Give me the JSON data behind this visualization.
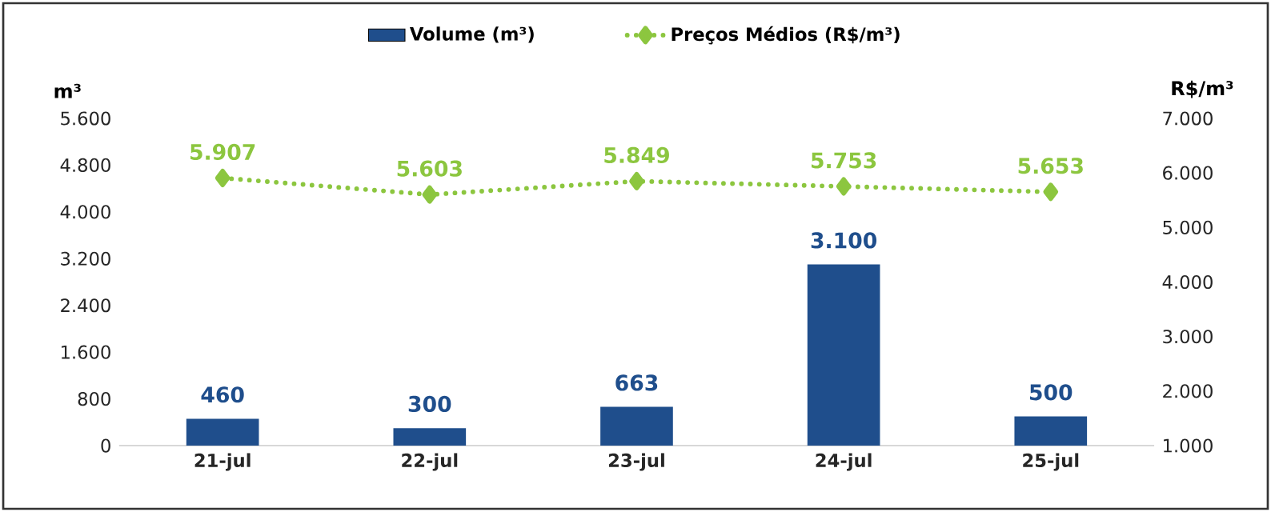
{
  "chart_data": {
    "type": "bar",
    "categories": [
      "21-jul",
      "22-jul",
      "23-jul",
      "24-jul",
      "25-jul"
    ],
    "ylabel": "m³",
    "y2label": "R$/m³",
    "series": [
      {
        "name": "Volume (m³)",
        "color": "#1f4e8c",
        "values": [
          460,
          300,
          663,
          3100,
          500
        ],
        "value_labels": [
          "460",
          "300",
          "663",
          "3.100",
          "500"
        ]
      },
      {
        "name": "Preços Médios (R$/m³)",
        "type": "line",
        "axis": "y2",
        "color": "#8cc63f",
        "marker": "diamond",
        "line_style": "dotted",
        "values": [
          5907,
          5603,
          5849,
          5753,
          5653
        ],
        "value_labels": [
          "5.907",
          "5.603",
          "5.849",
          "5.753",
          "5.653"
        ]
      }
    ],
    "ylim": [
      0,
      5600
    ],
    "yticks": [
      {
        "value": 0,
        "label": "0"
      },
      {
        "value": 800,
        "label": "800"
      },
      {
        "value": 1600,
        "label": "1.600"
      },
      {
        "value": 2400,
        "label": "2.400"
      },
      {
        "value": 3200,
        "label": "3.200"
      },
      {
        "value": 4000,
        "label": "4.000"
      },
      {
        "value": 4800,
        "label": "4.800"
      },
      {
        "value": 5600,
        "label": "5.600"
      }
    ],
    "y2lim": [
      1000,
      7000
    ],
    "y2ticks": [
      {
        "value": 1000,
        "label": "1.000"
      },
      {
        "value": 2000,
        "label": "2.000"
      },
      {
        "value": 3000,
        "label": "3.000"
      },
      {
        "value": 4000,
        "label": "4.000"
      },
      {
        "value": 5000,
        "label": "5.000"
      },
      {
        "value": 6000,
        "label": "6.000"
      },
      {
        "value": 7000,
        "label": "7.000"
      }
    ],
    "legend": "top",
    "grid": false
  }
}
